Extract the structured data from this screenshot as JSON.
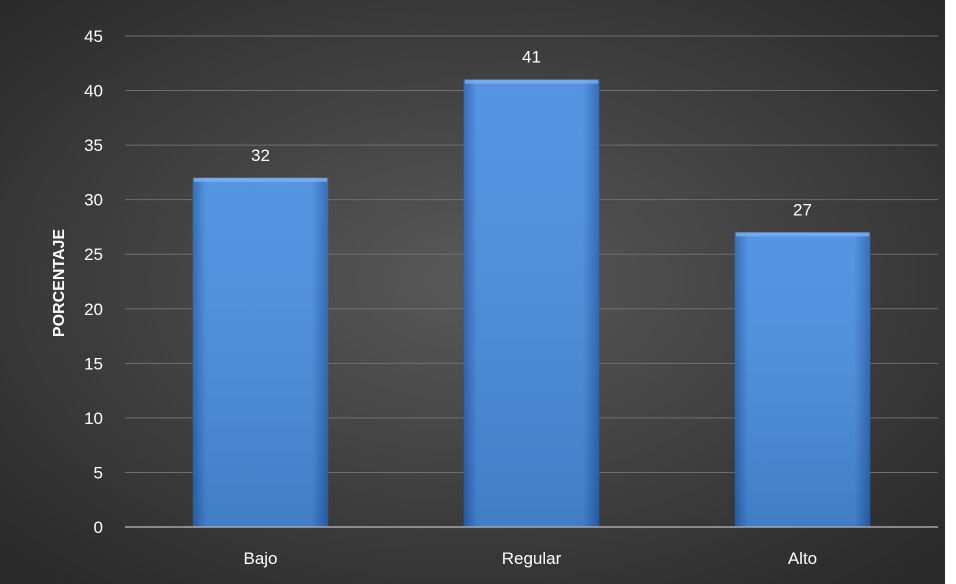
{
  "chart_data": {
    "type": "bar",
    "categories": [
      "Bajo",
      "Regular",
      "Alto"
    ],
    "values": [
      32,
      41,
      27
    ],
    "data_labels": [
      "32",
      "41",
      "27"
    ],
    "title": "",
    "xlabel": "",
    "ylabel": "PORCENTAJE",
    "ylim": [
      0,
      45
    ],
    "yticks": [
      0,
      5,
      10,
      15,
      20,
      25,
      30,
      35,
      40,
      45
    ],
    "grid": true,
    "legend": "none"
  },
  "colors": {
    "background_center": "#595959",
    "background_edge": "#2a2a2a",
    "bar_light": "#4a8ee0",
    "bar_dark": "#2c64b2",
    "text": "#ffffff",
    "gridline": "#6f6f6f",
    "axis_line": "#a6a6a6"
  }
}
